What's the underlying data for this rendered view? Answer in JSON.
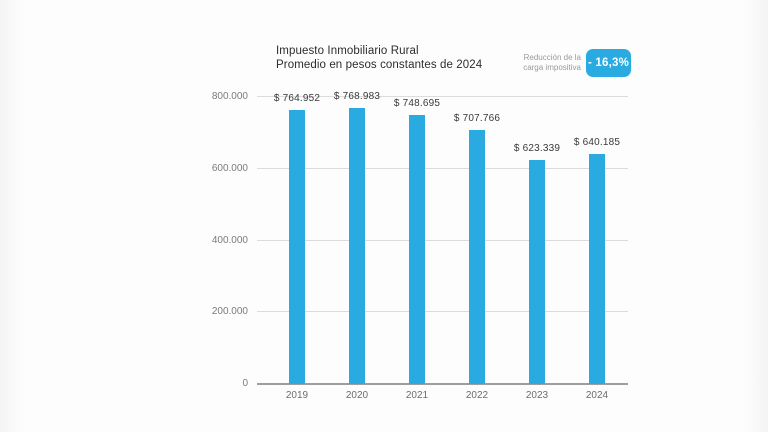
{
  "chart_data": {
    "type": "bar",
    "title_line1": "Impuesto Inmobiliario Rural",
    "title_line2": "Promedio en pesos constantes de 2024",
    "categories": [
      "2019",
      "2020",
      "2021",
      "2022",
      "2023",
      "2024"
    ],
    "values": [
      764952,
      768983,
      748695,
      707766,
      623339,
      640185
    ],
    "value_labels": [
      "$ 764.952",
      "$ 768.983",
      "$ 748.695",
      "$ 707.766",
      "$ 623.339",
      "$ 640.185"
    ],
    "ylim": [
      0,
      800000
    ],
    "yticks": [
      {
        "value": 0,
        "label": "0"
      },
      {
        "value": 200000,
        "label": "200.000"
      },
      {
        "value": 400000,
        "label": "400.000"
      },
      {
        "value": 600000,
        "label": "600.000"
      },
      {
        "value": 800000,
        "label": "800.000"
      }
    ],
    "grid": true,
    "legend": "none",
    "bar_color": "#29ABE2"
  },
  "badge": {
    "caption_line1": "Reducción de la",
    "caption_line2": "carga impositiva",
    "value": "- 16,3%",
    "color": "#29ABE2"
  }
}
